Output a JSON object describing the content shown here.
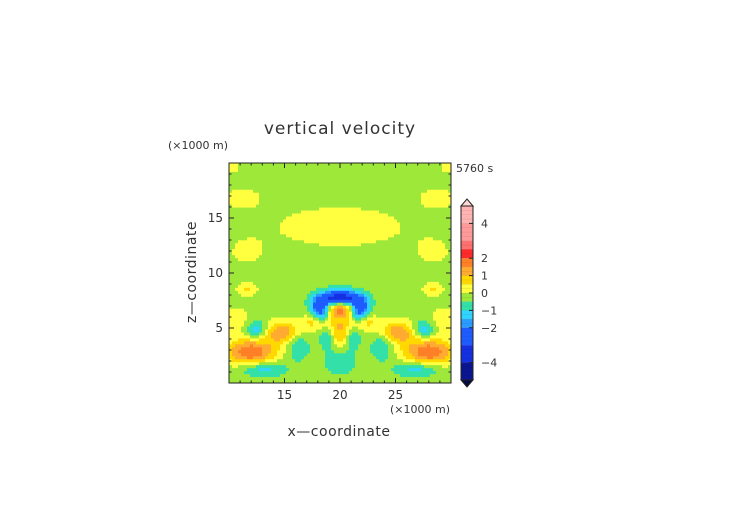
{
  "chart_data": {
    "type": "heatmap",
    "title": "vertical velocity",
    "time_label": "5760 s",
    "xlabel": "x—coordinate",
    "ylabel": "z—coordinate",
    "x_unit": "(×1000 m)",
    "y_unit": "(×1000 m)",
    "xlim": [
      10,
      30
    ],
    "ylim": [
      0,
      20
    ],
    "x_ticks": [
      {
        "value": 15,
        "label": "15"
      },
      {
        "value": 20,
        "label": "20"
      },
      {
        "value": 25,
        "label": "25"
      }
    ],
    "y_ticks": [
      {
        "value": 5,
        "label": "5"
      },
      {
        "value": 10,
        "label": "10"
      },
      {
        "value": 15,
        "label": "15"
      }
    ],
    "colorbar": {
      "range": [
        -5,
        5
      ],
      "extend": "both",
      "ticks": [
        {
          "value": 4,
          "label": "4"
        },
        {
          "value": 2,
          "label": "2"
        },
        {
          "value": 1,
          "label": "1"
        },
        {
          "value": 0,
          "label": "0"
        },
        {
          "value": -1,
          "label": "−1"
        },
        {
          "value": -2,
          "label": "−2"
        },
        {
          "value": -4,
          "label": "−4"
        }
      ],
      "levels": [
        {
          "from": 4,
          "to": 5,
          "color": "#ffb3b3"
        },
        {
          "from": 3,
          "to": 4,
          "color": "#ff9a9a"
        },
        {
          "from": 2.5,
          "to": 3,
          "color": "#ff7070"
        },
        {
          "from": 2,
          "to": 2.5,
          "color": "#ff2a2a"
        },
        {
          "from": 1.5,
          "to": 2,
          "color": "#ff7f27"
        },
        {
          "from": 1,
          "to": 1.5,
          "color": "#ffaa30"
        },
        {
          "from": 0.5,
          "to": 1,
          "color": "#ffd800"
        },
        {
          "from": 0,
          "to": 0.5,
          "color": "#ffff40"
        },
        {
          "from": -0.5,
          "to": 0,
          "color": "#9ee83a"
        },
        {
          "from": -1,
          "to": -0.5,
          "color": "#33e0a8"
        },
        {
          "from": -1.5,
          "to": -1,
          "color": "#2fd4ff"
        },
        {
          "from": -2,
          "to": -1.5,
          "color": "#2a9cff"
        },
        {
          "from": -3,
          "to": -2,
          "color": "#1f5cff"
        },
        {
          "from": -4,
          "to": -3,
          "color": "#1530e0"
        },
        {
          "from": -5,
          "to": -4,
          "color": "#0a1690"
        }
      ]
    },
    "field_features": [
      {
        "x": 20,
        "z": 6.8,
        "value": 2.6,
        "sx": 0.9,
        "sz": 0.6
      },
      {
        "x": 20,
        "z": 7.7,
        "value": -4.0,
        "sx": 1.2,
        "sz": 0.5
      },
      {
        "x": 18.2,
        "z": 6.7,
        "value": -2.6,
        "sx": 0.6,
        "sz": 0.7
      },
      {
        "x": 21.8,
        "z": 6.7,
        "value": -2.6,
        "sx": 0.6,
        "sz": 0.7
      },
      {
        "x": 20,
        "z": 5.3,
        "value": 1.0,
        "sx": 1.0,
        "sz": 0.5
      },
      {
        "x": 20,
        "z": 4.2,
        "value": 1.1,
        "sx": 0.5,
        "sz": 0.6
      },
      {
        "x": 12.0,
        "z": 2.8,
        "value": 2.2,
        "sx": 1.6,
        "sz": 0.9
      },
      {
        "x": 28.0,
        "z": 2.8,
        "value": 2.2,
        "sx": 1.6,
        "sz": 0.9
      },
      {
        "x": 14.8,
        "z": 4.6,
        "value": 1.7,
        "sx": 1.2,
        "sz": 0.7
      },
      {
        "x": 25.2,
        "z": 4.6,
        "value": 1.7,
        "sx": 1.2,
        "sz": 0.7
      },
      {
        "x": 17.6,
        "z": 5.6,
        "value": 1.0,
        "sx": 0.7,
        "sz": 0.5
      },
      {
        "x": 22.4,
        "z": 5.6,
        "value": 1.0,
        "sx": 0.7,
        "sz": 0.5
      },
      {
        "x": 12.5,
        "z": 4.8,
        "value": -1.3,
        "sx": 0.7,
        "sz": 0.6
      },
      {
        "x": 27.5,
        "z": 4.8,
        "value": -1.3,
        "sx": 0.7,
        "sz": 0.6
      },
      {
        "x": 13.0,
        "z": 1.3,
        "value": -1.2,
        "sx": 1.4,
        "sz": 0.5
      },
      {
        "x": 27.0,
        "z": 1.3,
        "value": -1.2,
        "sx": 1.4,
        "sz": 0.5
      },
      {
        "x": 16.2,
        "z": 3.4,
        "value": -0.9,
        "sx": 0.7,
        "sz": 0.9
      },
      {
        "x": 23.8,
        "z": 3.4,
        "value": -0.9,
        "sx": 0.7,
        "sz": 0.9
      },
      {
        "x": 18.8,
        "z": 4.0,
        "value": -0.8,
        "sx": 0.4,
        "sz": 0.7
      },
      {
        "x": 21.2,
        "z": 4.0,
        "value": -0.8,
        "sx": 0.4,
        "sz": 0.7
      },
      {
        "x": 20,
        "z": 1.8,
        "value": -0.6,
        "sx": 1.0,
        "sz": 0.8
      },
      {
        "x": 10.8,
        "z": 5.8,
        "value": 0.6,
        "sx": 0.8,
        "sz": 0.8
      },
      {
        "x": 29.2,
        "z": 5.8,
        "value": 0.6,
        "sx": 0.8,
        "sz": 0.8
      },
      {
        "x": 11.6,
        "z": 8.5,
        "value": 0.9,
        "sx": 0.6,
        "sz": 0.4
      },
      {
        "x": 28.4,
        "z": 8.5,
        "value": 0.9,
        "sx": 0.6,
        "sz": 0.4
      },
      {
        "x": 20,
        "z": 14.2,
        "value": 0.45,
        "sx": 5.0,
        "sz": 1.6
      },
      {
        "x": 11.2,
        "z": 16.8,
        "value": 0.45,
        "sx": 1.3,
        "sz": 0.7
      },
      {
        "x": 28.8,
        "z": 16.8,
        "value": 0.45,
        "sx": 1.3,
        "sz": 0.7
      },
      {
        "x": 11.5,
        "z": 11.8,
        "value": 0.3,
        "sx": 1.5,
        "sz": 1.2
      },
      {
        "x": 28.5,
        "z": 11.8,
        "value": 0.3,
        "sx": 1.5,
        "sz": 1.2
      },
      {
        "x": 10.3,
        "z": 19.6,
        "value": 0.4,
        "sx": 0.5,
        "sz": 0.5
      },
      {
        "x": 29.7,
        "z": 19.6,
        "value": 0.4,
        "sx": 0.5,
        "sz": 0.5
      }
    ],
    "background_value": -0.25,
    "grid": false,
    "legend": "colorbar-right"
  }
}
